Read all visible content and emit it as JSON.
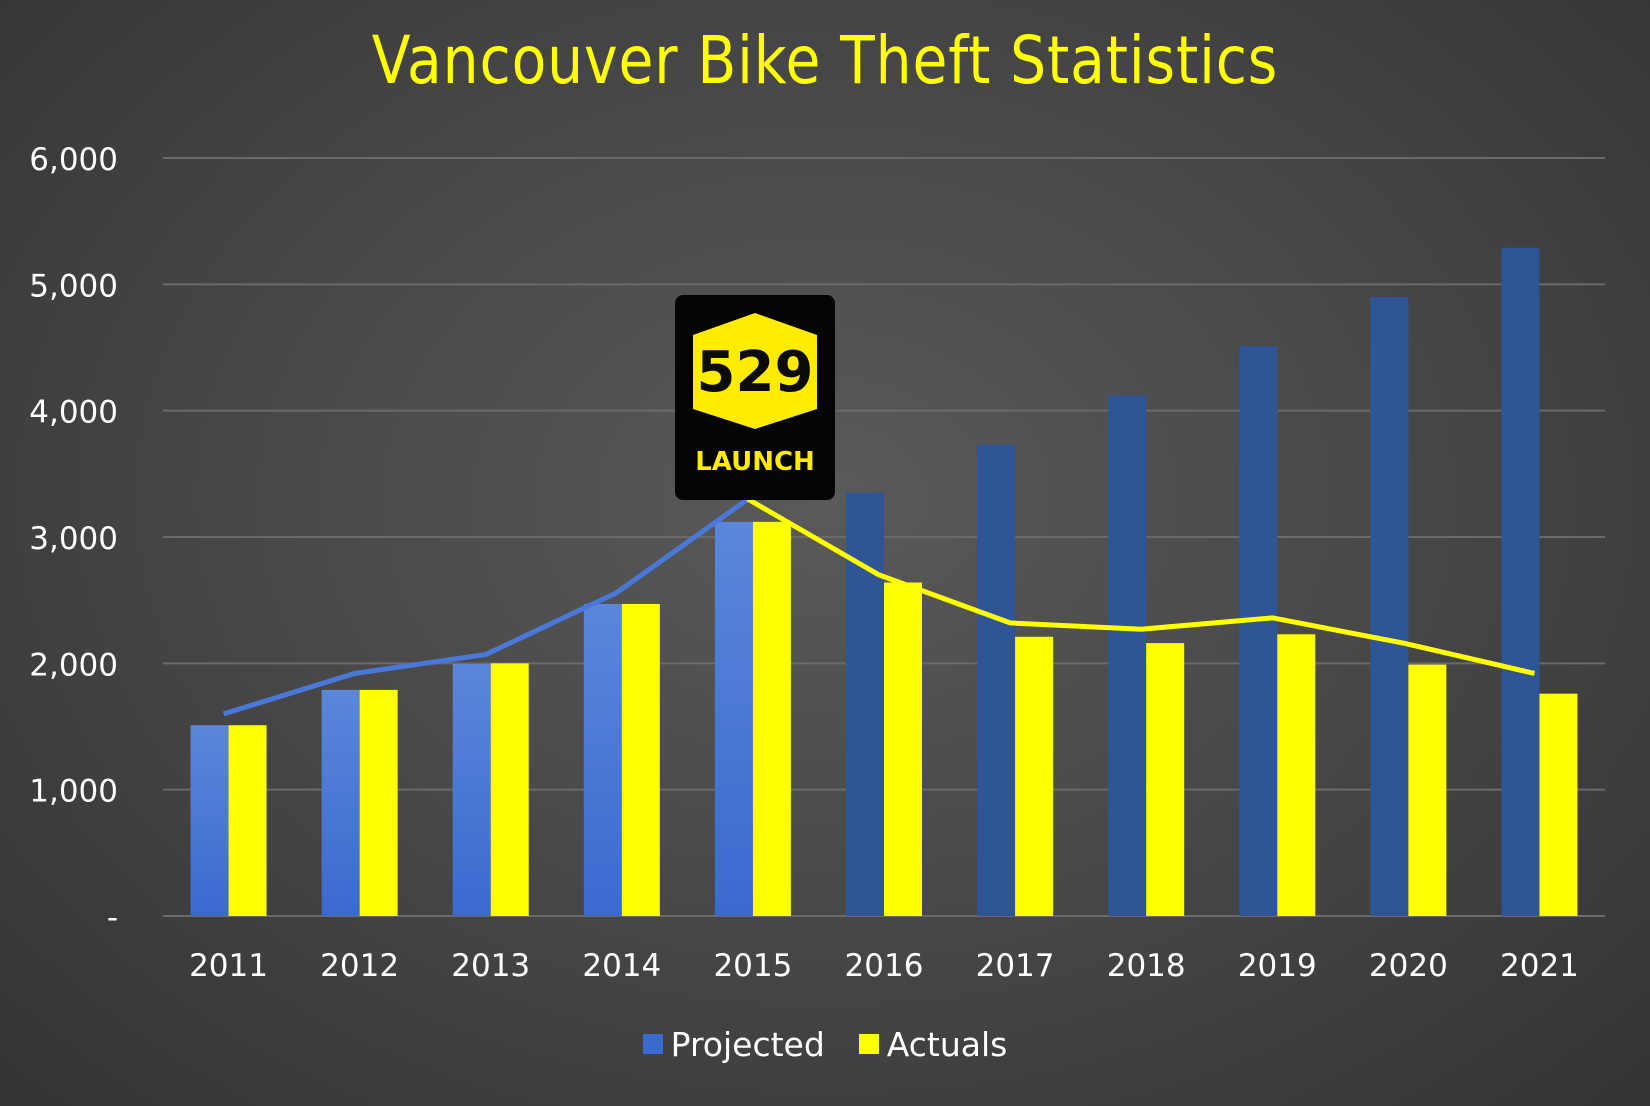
{
  "chart_data": {
    "type": "bar",
    "title": "Vancouver Bike Theft Statistics",
    "categories": [
      "2011",
      "2012",
      "2013",
      "2014",
      "2015",
      "2016",
      "2017",
      "2018",
      "2019",
      "2020",
      "2021"
    ],
    "series": [
      {
        "name": "Projected",
        "values": [
          1510,
          1790,
          1995,
          2470,
          3120,
          3350,
          3730,
          4120,
          4510,
          4900,
          5290
        ]
      },
      {
        "name": "Actuals",
        "values": [
          1510,
          1790,
          2000,
          2470,
          3120,
          2640,
          2210,
          2160,
          2230,
          1990,
          1760
        ]
      }
    ],
    "trend_line": {
      "x": [
        "2011",
        "2012",
        "2013",
        "2014",
        "2015",
        "2016",
        "2017",
        "2018",
        "2019",
        "2020",
        "2021"
      ],
      "values": [
        1600,
        1920,
        2070,
        2560,
        3300,
        2700,
        2320,
        2270,
        2360,
        2160,
        1920
      ],
      "before_color": "#4a78d8",
      "after_color": "#ffff00"
    },
    "ylim": [
      0,
      6000
    ],
    "yticks": [
      0,
      1000,
      2000,
      3000,
      4000,
      5000,
      6000
    ],
    "ytick_labels": [
      "-",
      "1,000",
      "2,000",
      "3,000",
      "4,000",
      "5,000",
      "6,000"
    ],
    "grid": true,
    "legend_position": "bottom-center",
    "colors": {
      "projected_light": "#5a87d9",
      "projected_dark": "#2f5597",
      "actuals": "#ffff00",
      "title": "#ffff00",
      "grid": "#6a6a6a",
      "tick_text": "#ffffff"
    },
    "annotation": {
      "category": "2015",
      "logo_text": "529",
      "label": "LAUNCH",
      "logo_color": "#ffec00"
    }
  }
}
